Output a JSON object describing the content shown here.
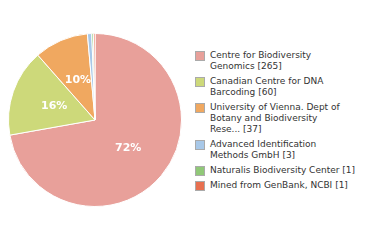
{
  "chart_data": {
    "type": "pie",
    "categories": [
      "Centre for Biodiversity\nGenomics [265]",
      "Canadian Centre for DNA\nBarcoding [60]",
      "University of Vienna. Dept of\nBotany and Biodiversity\nRese... [37]",
      "Advanced Identification\nMethods GmbH [3]",
      "Naturalis Biodiversity Center [1]",
      "Mined from GenBank, NCBI [1]"
    ],
    "values": [
      72.2,
      16.3,
      10.1,
      0.8,
      0.3,
      0.3
    ],
    "value_labels": [
      "72%",
      "16%",
      "10%",
      null,
      null,
      null
    ],
    "colors": [
      "#e8a09a",
      "#cdd97a",
      "#f0a860",
      "#a8c8e8",
      "#90c878",
      "#e87050"
    ],
    "data_labels": true,
    "legend": "right"
  }
}
